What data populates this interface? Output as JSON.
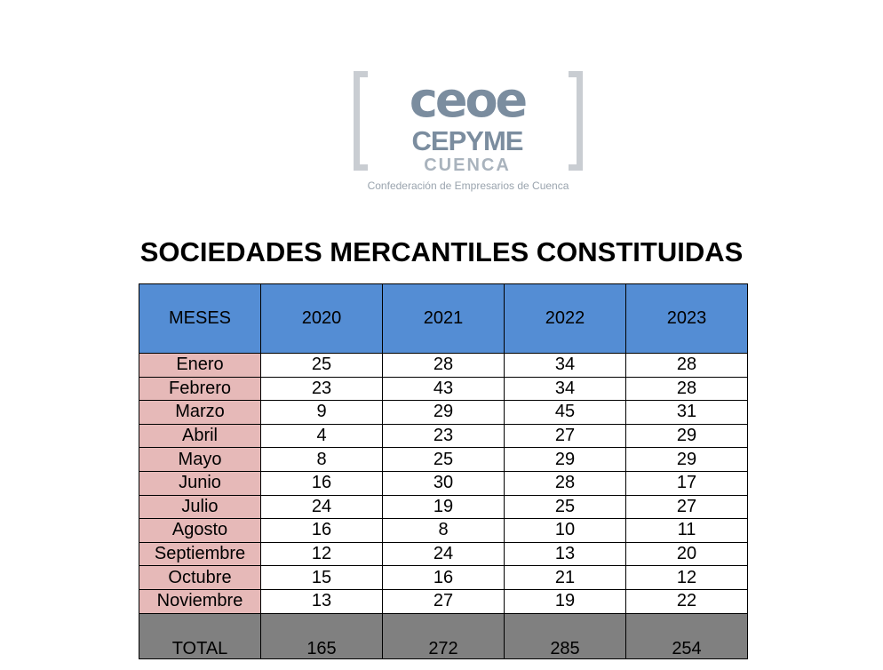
{
  "logo": {
    "line1": "ceoe",
    "line2": "CEPYME",
    "line3": "CUENCA",
    "tagline": "Confederación de Empresarios de Cuenca"
  },
  "title": "SOCIEDADES MERCANTILES CONSTITUIDAS",
  "table": {
    "headers": [
      "MESES",
      "2020",
      "2021",
      "2022",
      "2023"
    ],
    "rows": [
      [
        "Enero",
        "25",
        "28",
        "34",
        "28"
      ],
      [
        "Febrero",
        "23",
        "43",
        "34",
        "28"
      ],
      [
        "Marzo",
        "9",
        "29",
        "45",
        "31"
      ],
      [
        "Abril",
        "4",
        "23",
        "27",
        "29"
      ],
      [
        "Mayo",
        "8",
        "25",
        "29",
        "29"
      ],
      [
        "Junio",
        "16",
        "30",
        "28",
        "17"
      ],
      [
        "Julio",
        "24",
        "19",
        "25",
        "27"
      ],
      [
        "Agosto",
        "16",
        "8",
        "10",
        "11"
      ],
      [
        "Septiembre",
        "12",
        "24",
        "13",
        "20"
      ],
      [
        "Octubre",
        "15",
        "16",
        "21",
        "12"
      ],
      [
        "Noviembre",
        "13",
        "27",
        "19",
        "22"
      ]
    ],
    "total": [
      "TOTAL",
      "165",
      "272",
      "285",
      "254"
    ]
  },
  "colors": {
    "header_bg": "#548dd4",
    "month_bg": "#e6b9b8",
    "total_bg": "#808080",
    "logo_text": "#7b8d9f"
  }
}
